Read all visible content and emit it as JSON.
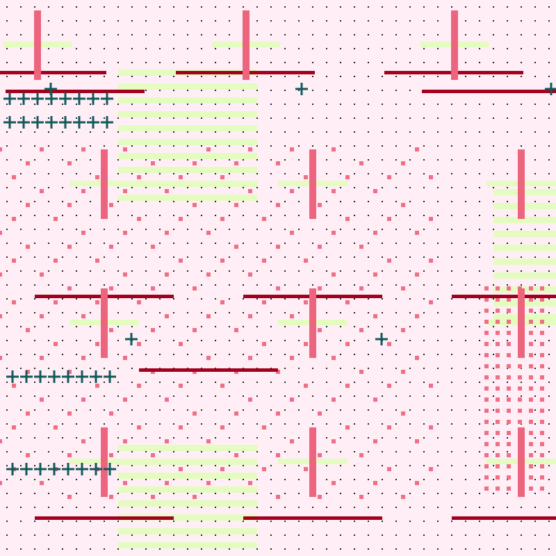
{
  "palette": {
    "background": "#ffeef6",
    "dot": "#222222",
    "pink_dot": "#ef6f86",
    "pink_bar": "#ed647e",
    "red_line": "#a3001e",
    "lime_stripe": "#e4fcc0",
    "plus_mark": "#11585a"
  }
}
